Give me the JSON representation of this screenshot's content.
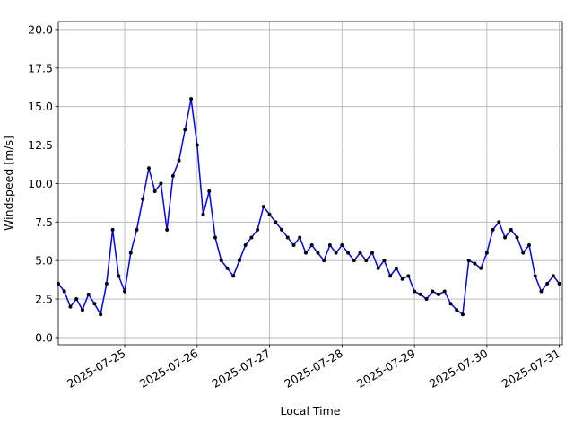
{
  "chart_data": {
    "type": "line",
    "x_label": "Local Time",
    "y_label": "Windspeed [m/s]",
    "xlim": [
      "2025-07-24T02:00",
      "2025-07-31T01:00"
    ],
    "xticks": [
      "2025-07-25",
      "2025-07-26",
      "2025-07-27",
      "2025-07-28",
      "2025-07-29",
      "2025-07-30",
      "2025-07-31"
    ],
    "ylim": [
      -0.47,
      20.52
    ],
    "yticks": [
      {
        "value": 0,
        "label": "0.0"
      },
      {
        "value": 2.5,
        "label": "2.5"
      },
      {
        "value": 5,
        "label": "5.0"
      },
      {
        "value": 7.5,
        "label": "7.5"
      },
      {
        "value": 10,
        "label": "10.0"
      },
      {
        "value": 12.5,
        "label": "12.5"
      },
      {
        "value": 15,
        "label": "15.0"
      },
      {
        "value": 17.5,
        "label": "17.5"
      },
      {
        "value": 20,
        "label": "20.0"
      }
    ],
    "grid": true,
    "x": [
      "2025-07-24T02:00",
      "2025-07-24T04:00",
      "2025-07-24T06:00",
      "2025-07-24T08:00",
      "2025-07-24T10:00",
      "2025-07-24T12:00",
      "2025-07-24T14:00",
      "2025-07-24T16:00",
      "2025-07-24T18:00",
      "2025-07-24T20:00",
      "2025-07-24T22:00",
      "2025-07-25T00:00",
      "2025-07-25T02:00",
      "2025-07-25T04:00",
      "2025-07-25T06:00",
      "2025-07-25T08:00",
      "2025-07-25T10:00",
      "2025-07-25T12:00",
      "2025-07-25T14:00",
      "2025-07-25T16:00",
      "2025-07-25T18:00",
      "2025-07-25T20:00",
      "2025-07-25T22:00",
      "2025-07-26T00:00",
      "2025-07-26T02:00",
      "2025-07-26T04:00",
      "2025-07-26T06:00",
      "2025-07-26T08:00",
      "2025-07-26T10:00",
      "2025-07-26T12:00",
      "2025-07-26T14:00",
      "2025-07-26T16:00",
      "2025-07-26T18:00",
      "2025-07-26T20:00",
      "2025-07-26T22:00",
      "2025-07-27T00:00",
      "2025-07-27T02:00",
      "2025-07-27T04:00",
      "2025-07-27T06:00",
      "2025-07-27T08:00",
      "2025-07-27T10:00",
      "2025-07-27T12:00",
      "2025-07-27T14:00",
      "2025-07-27T16:00",
      "2025-07-27T18:00",
      "2025-07-27T20:00",
      "2025-07-27T22:00",
      "2025-07-28T00:00",
      "2025-07-28T02:00",
      "2025-07-28T04:00",
      "2025-07-28T06:00",
      "2025-07-28T08:00",
      "2025-07-28T10:00",
      "2025-07-28T12:00",
      "2025-07-28T14:00",
      "2025-07-28T16:00",
      "2025-07-28T18:00",
      "2025-07-28T20:00",
      "2025-07-28T22:00",
      "2025-07-29T00:00",
      "2025-07-29T02:00",
      "2025-07-29T04:00",
      "2025-07-29T06:00",
      "2025-07-29T08:00",
      "2025-07-29T10:00",
      "2025-07-29T12:00",
      "2025-07-29T14:00",
      "2025-07-29T16:00",
      "2025-07-29T18:00",
      "2025-07-29T20:00",
      "2025-07-29T22:00",
      "2025-07-30T00:00",
      "2025-07-30T02:00",
      "2025-07-30T04:00",
      "2025-07-30T06:00",
      "2025-07-30T08:00",
      "2025-07-30T10:00",
      "2025-07-30T12:00",
      "2025-07-30T14:00",
      "2025-07-30T16:00",
      "2025-07-30T18:00",
      "2025-07-30T20:00",
      "2025-07-30T22:00",
      "2025-07-31T00:00"
    ],
    "series": [
      {
        "color": "#0000ff",
        "marker_color": "#000000",
        "values": [
          3.5,
          3.0,
          2.0,
          2.5,
          1.8,
          2.8,
          2.2,
          1.5,
          3.5,
          7.0,
          4.0,
          3.0,
          5.5,
          7.0,
          9.0,
          11.0,
          9.5,
          10.0,
          7.0,
          10.5,
          11.5,
          13.5,
          15.5,
          12.5,
          8.0,
          9.5,
          6.5,
          5.0,
          4.5,
          4.0,
          5.0,
          6.0,
          6.5,
          7.0,
          8.5,
          8.0,
          7.5,
          7.0,
          6.5,
          6.0,
          6.5,
          5.5,
          6.0,
          5.5,
          5.0,
          6.0,
          5.5,
          6.0,
          5.5,
          5.0,
          5.5,
          5.0,
          5.5,
          4.5,
          5.0,
          4.0,
          4.5,
          3.8,
          4.0,
          3.0,
          2.8,
          2.5,
          3.0,
          2.8,
          3.0,
          2.2,
          1.8,
          1.5,
          5.0,
          4.8,
          4.5,
          5.5,
          7.0,
          7.5,
          6.5,
          7.0,
          6.5,
          5.5,
          6.0,
          4.0,
          3.0,
          3.5,
          4.0,
          3.5
        ]
      }
    ]
  }
}
